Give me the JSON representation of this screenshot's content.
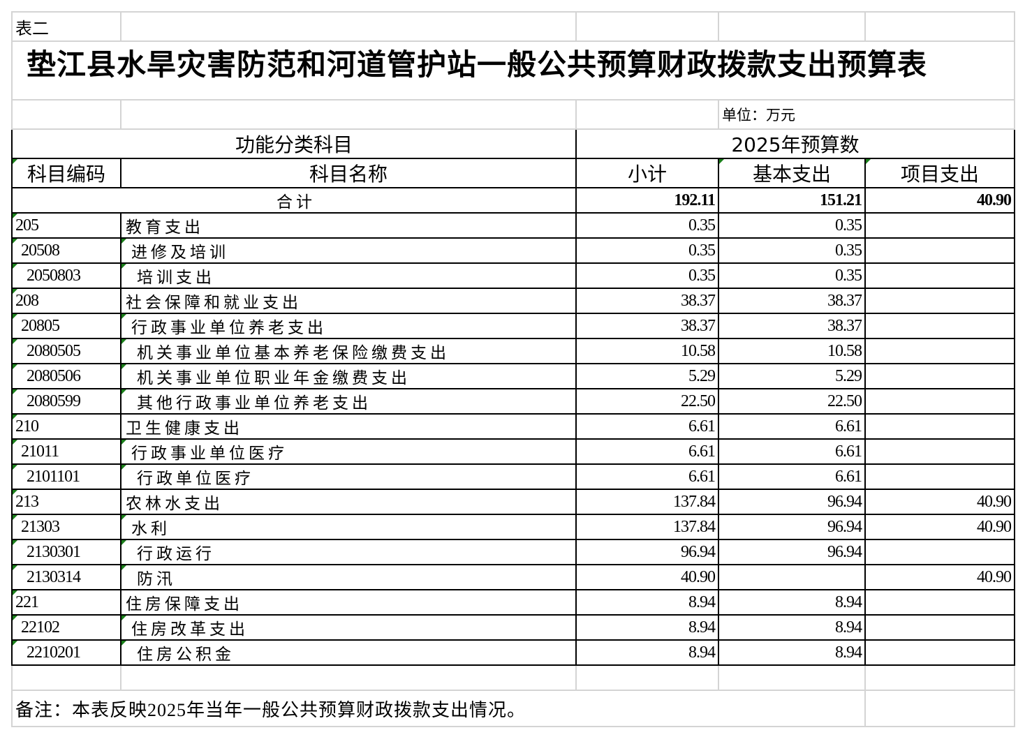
{
  "sheet_label": "表二",
  "title": "垫江县水旱灾害防范和河道管护站一般公共预算财政拨款支出预算表",
  "unit": "单位：万元",
  "header": {
    "group_left": "功能分类科目",
    "group_right": "2025年预算数",
    "code": "科目编码",
    "name": "科目名称",
    "subtotal": "小计",
    "basic": "基本支出",
    "project": "项目支出"
  },
  "total": {
    "label": "合计",
    "subtotal": "192.11",
    "basic": "151.21",
    "project": "40.90"
  },
  "rows": [
    {
      "code": "205",
      "name": "教育支出",
      "level": 0,
      "subtotal": "0.35",
      "basic": "0.35",
      "project": ""
    },
    {
      "code": "20508",
      "name": "进修及培训",
      "level": 1,
      "subtotal": "0.35",
      "basic": "0.35",
      "project": ""
    },
    {
      "code": "2050803",
      "name": "培训支出",
      "level": 2,
      "subtotal": "0.35",
      "basic": "0.35",
      "project": ""
    },
    {
      "code": "208",
      "name": "社会保障和就业支出",
      "level": 0,
      "subtotal": "38.37",
      "basic": "38.37",
      "project": ""
    },
    {
      "code": "20805",
      "name": "行政事业单位养老支出",
      "level": 1,
      "subtotal": "38.37",
      "basic": "38.37",
      "project": ""
    },
    {
      "code": "2080505",
      "name": "机关事业单位基本养老保险缴费支出",
      "level": 2,
      "subtotal": "10.58",
      "basic": "10.58",
      "project": ""
    },
    {
      "code": "2080506",
      "name": "机关事业单位职业年金缴费支出",
      "level": 2,
      "subtotal": "5.29",
      "basic": "5.29",
      "project": ""
    },
    {
      "code": "2080599",
      "name": "其他行政事业单位养老支出",
      "level": 2,
      "subtotal": "22.50",
      "basic": "22.50",
      "project": ""
    },
    {
      "code": "210",
      "name": "卫生健康支出",
      "level": 0,
      "subtotal": "6.61",
      "basic": "6.61",
      "project": ""
    },
    {
      "code": "21011",
      "name": "行政事业单位医疗",
      "level": 1,
      "subtotal": "6.61",
      "basic": "6.61",
      "project": ""
    },
    {
      "code": "2101101",
      "name": "行政单位医疗",
      "level": 2,
      "subtotal": "6.61",
      "basic": "6.61",
      "project": ""
    },
    {
      "code": "213",
      "name": "农林水支出",
      "level": 0,
      "subtotal": "137.84",
      "basic": "96.94",
      "project": "40.90"
    },
    {
      "code": "21303",
      "name": "水利",
      "level": 1,
      "subtotal": "137.84",
      "basic": "96.94",
      "project": "40.90"
    },
    {
      "code": "2130301",
      "name": "行政运行",
      "level": 2,
      "subtotal": "96.94",
      "basic": "96.94",
      "project": ""
    },
    {
      "code": "2130314",
      "name": "防汛",
      "level": 2,
      "subtotal": "40.90",
      "basic": "",
      "project": "40.90"
    },
    {
      "code": "221",
      "name": "住房保障支出",
      "level": 0,
      "subtotal": "8.94",
      "basic": "8.94",
      "project": ""
    },
    {
      "code": "22102",
      "name": "住房改革支出",
      "level": 1,
      "subtotal": "8.94",
      "basic": "8.94",
      "project": ""
    },
    {
      "code": "2210201",
      "name": "住房公积金",
      "level": 2,
      "subtotal": "8.94",
      "basic": "8.94",
      "project": ""
    }
  ],
  "note": "备注：本表反映2025年当年一般公共预算财政拨款支出情况。"
}
